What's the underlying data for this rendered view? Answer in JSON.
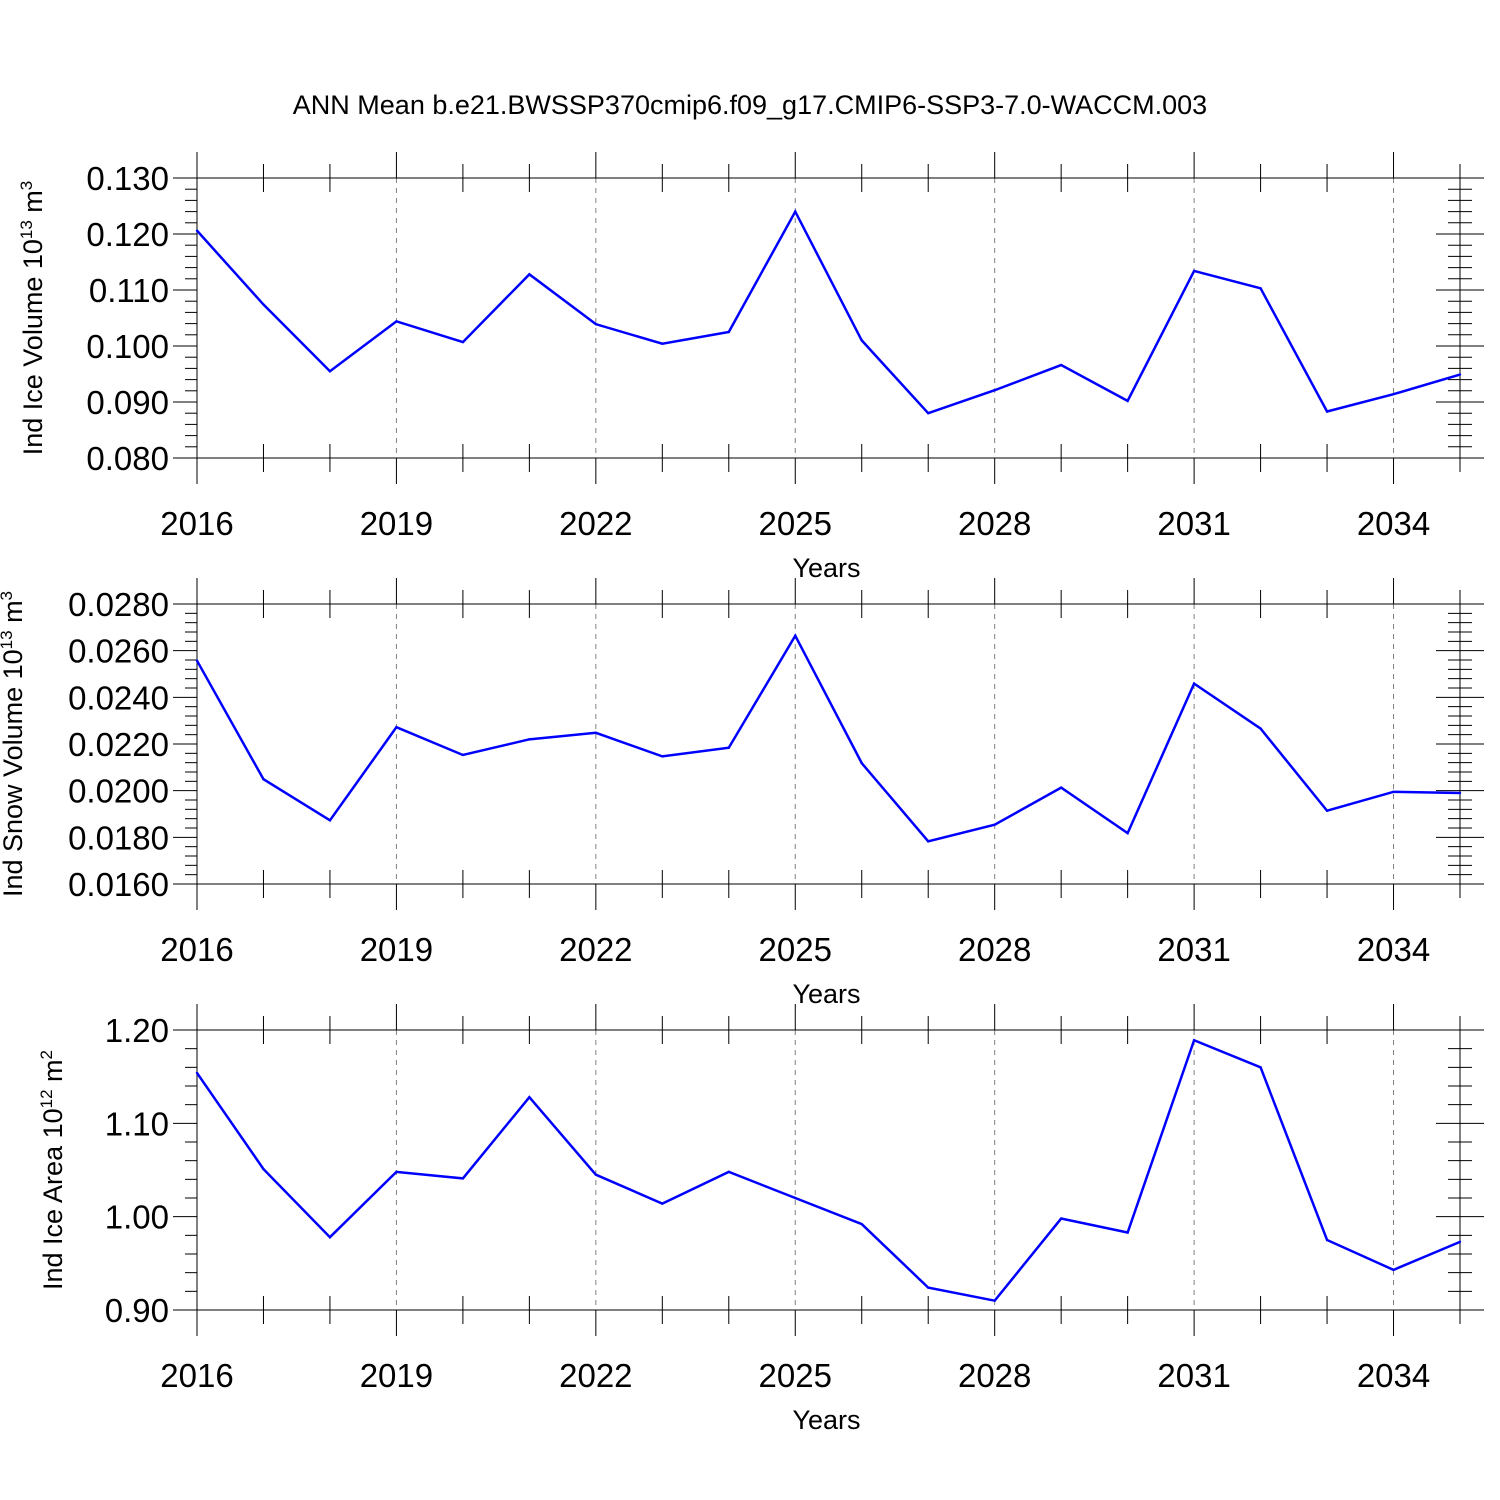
{
  "figure": {
    "title": "ANN Mean b.e21.BWSSP370cmip6.f09_g17.CMIP6-SSP3-7.0-WACCM.003",
    "line_color": "#0000ff",
    "grid_color": "#808080"
  },
  "chart_data": [
    {
      "type": "line",
      "title": "ANN Mean b.e21.BWSSP370cmip6.f09_g17.CMIP6-SSP3-7.0-WACCM.003",
      "ylabel": "Ind Ice Volume 10",
      "ylabel_exponent": "13",
      "ylabel_unit": " m",
      "ylabel_unit_exponent": "3",
      "xlabel": "Years",
      "xlim": [
        2016,
        2035
      ],
      "ylim": [
        0.08,
        0.13
      ],
      "x_ticks": [
        2016,
        2019,
        2022,
        2025,
        2028,
        2031,
        2034
      ],
      "x_tick_labels": [
        "2016",
        "2019",
        "2022",
        "2025",
        "2028",
        "2031",
        "2034"
      ],
      "y_ticks": [
        0.08,
        0.09,
        0.1,
        0.11,
        0.12,
        0.13
      ],
      "y_tick_labels": [
        "0.080",
        "0.090",
        "0.100",
        "0.110",
        "0.120",
        "0.130"
      ],
      "grid": "vertical dashed at major x ticks",
      "x": [
        2016,
        2017,
        2018,
        2019,
        2020,
        2021,
        2022,
        2023,
        2024,
        2025,
        2026,
        2027,
        2028,
        2029,
        2030,
        2031,
        2032,
        2033,
        2034,
        2035
      ],
      "values": [
        0.1206,
        0.1074,
        0.0955,
        0.1044,
        0.1007,
        0.1128,
        0.1039,
        0.1004,
        0.1025,
        0.124,
        0.101,
        0.088,
        0.0921,
        0.0966,
        0.0902,
        0.1134,
        0.1103,
        0.0883,
        0.0914,
        0.0949
      ]
    },
    {
      "type": "line",
      "ylabel": "Ind Snow Volume 10",
      "ylabel_exponent": "13",
      "ylabel_unit": " m",
      "ylabel_unit_exponent": "3",
      "xlabel": "Years",
      "xlim": [
        2016,
        2035
      ],
      "ylim": [
        0.016,
        0.028
      ],
      "x_ticks": [
        2016,
        2019,
        2022,
        2025,
        2028,
        2031,
        2034
      ],
      "x_tick_labels": [
        "2016",
        "2019",
        "2022",
        "2025",
        "2028",
        "2031",
        "2034"
      ],
      "y_ticks": [
        0.016,
        0.018,
        0.02,
        0.022,
        0.024,
        0.026,
        0.028
      ],
      "y_tick_labels": [
        "0.0160",
        "0.0180",
        "0.0200",
        "0.0220",
        "0.0240",
        "0.0260",
        "0.0280"
      ],
      "grid": "vertical dashed at major x ticks",
      "x": [
        2016,
        2017,
        2018,
        2019,
        2020,
        2021,
        2022,
        2023,
        2024,
        2025,
        2026,
        2027,
        2028,
        2029,
        2030,
        2031,
        2032,
        2033,
        2034,
        2035
      ],
      "values": [
        0.02557,
        0.02049,
        0.01873,
        0.02272,
        0.02153,
        0.0222,
        0.02248,
        0.02147,
        0.02184,
        0.02664,
        0.02118,
        0.01783,
        0.01854,
        0.02013,
        0.01818,
        0.02459,
        0.02266,
        0.01914,
        0.01995,
        0.0199
      ]
    },
    {
      "type": "line",
      "ylabel": "Ind Ice Area 10",
      "ylabel_exponent": "12",
      "ylabel_unit": " m",
      "ylabel_unit_exponent": "2",
      "xlabel": "Years",
      "xlim": [
        2016,
        2035
      ],
      "ylim": [
        0.9,
        1.2
      ],
      "x_ticks": [
        2016,
        2019,
        2022,
        2025,
        2028,
        2031,
        2034
      ],
      "x_tick_labels": [
        "2016",
        "2019",
        "2022",
        "2025",
        "2028",
        "2031",
        "2034"
      ],
      "y_ticks": [
        0.9,
        1.0,
        1.1,
        1.2
      ],
      "y_tick_labels": [
        "0.90",
        "1.00",
        "1.10",
        "1.20"
      ],
      "grid": "vertical dashed at major x ticks",
      "x": [
        2016,
        2017,
        2018,
        2019,
        2020,
        2021,
        2022,
        2023,
        2024,
        2025,
        2026,
        2027,
        2028,
        2029,
        2030,
        2031,
        2032,
        2033,
        2034,
        2035
      ],
      "values": [
        1.154,
        1.051,
        0.978,
        1.048,
        1.041,
        1.128,
        1.045,
        1.014,
        1.048,
        1.02,
        0.992,
        0.924,
        0.91,
        0.998,
        0.983,
        1.189,
        1.16,
        0.975,
        0.943,
        0.973
      ]
    }
  ]
}
